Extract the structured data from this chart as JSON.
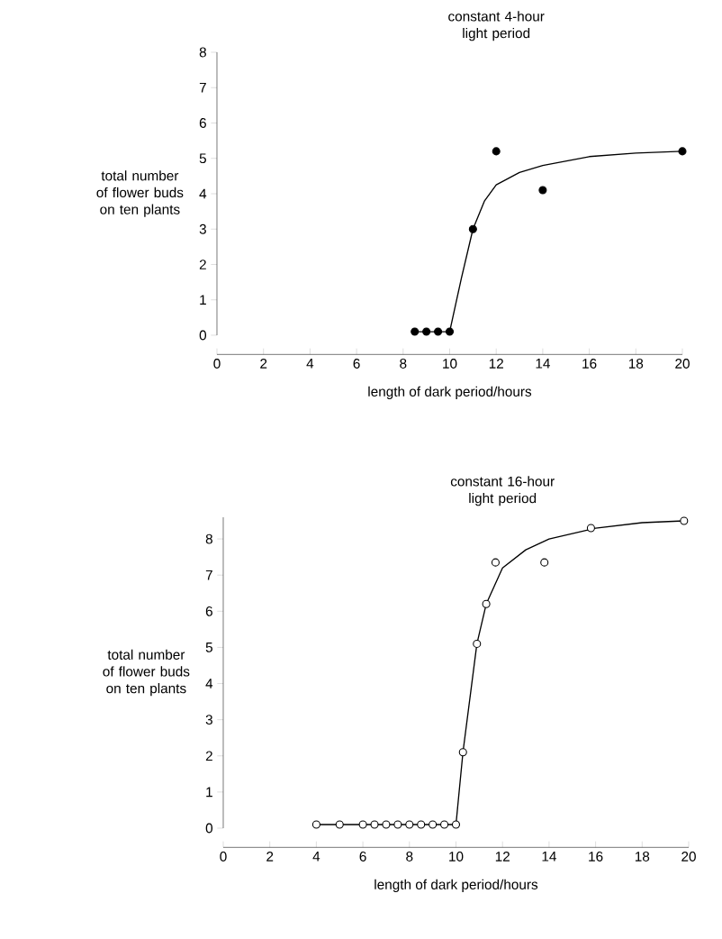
{
  "chart_data": [
    {
      "type": "scatter",
      "title": "constant 4-hour light period",
      "xlabel": "length of dark period/hours",
      "ylabel": "total number of flower buds on ten plants",
      "xlim": [
        0,
        20
      ],
      "ylim": [
        0,
        8
      ],
      "xticks": [
        0,
        2,
        4,
        6,
        8,
        10,
        12,
        14,
        16,
        18,
        20
      ],
      "yticks": [
        0,
        1,
        2,
        3,
        4,
        5,
        6,
        7,
        8
      ],
      "series": [
        {
          "marker": "circle",
          "color": "#000000",
          "x": [
            8.5,
            9,
            9.5,
            10,
            11,
            12,
            14,
            20
          ],
          "values": [
            0.1,
            0.1,
            0.1,
            0.1,
            3,
            5.2,
            4.1,
            5.2
          ]
        },
        {
          "type": "line",
          "color": "#000000",
          "line_style": "solid",
          "marker": "none",
          "x": [
            8.5,
            10,
            10.5,
            11,
            11.5,
            12,
            13,
            14,
            16,
            18,
            20
          ],
          "values": [
            0.1,
            0.1,
            1.6,
            3,
            3.8,
            4.25,
            4.6,
            4.8,
            5.05,
            5.15,
            5.2
          ]
        }
      ]
    },
    {
      "type": "scatter",
      "title": "constant 16-hour light period",
      "xlabel": "length of dark period/hours",
      "ylabel": "total number of flower buds on ten plants",
      "xlim": [
        0,
        20
      ],
      "ylim": [
        0,
        8.6
      ],
      "xticks": [
        0,
        2,
        4,
        6,
        8,
        10,
        12,
        14,
        16,
        18,
        20
      ],
      "yticks": [
        0,
        1,
        2,
        3,
        4,
        5,
        6,
        7,
        8
      ],
      "series": [
        {
          "marker": "circle",
          "color": "#ffffff",
          "x": [
            4,
            5,
            6,
            6.5,
            7,
            7.5,
            8,
            8.5,
            9,
            9.5,
            10,
            10.3,
            10.9,
            11.3,
            11.7,
            13.8,
            15.8,
            19.8
          ],
          "values": [
            0.1,
            0.1,
            0.1,
            0.1,
            0.1,
            0.1,
            0.1,
            0.1,
            0.1,
            0.1,
            0.1,
            2.1,
            5.1,
            6.2,
            7.35,
            7.35,
            8.3,
            8.5
          ]
        },
        {
          "type": "line",
          "color": "#000000",
          "line_style": "solid",
          "marker": "none",
          "x": [
            4,
            10,
            10.3,
            10.9,
            11.3,
            12,
            13,
            14,
            16,
            18,
            19.8
          ],
          "values": [
            0.1,
            0.1,
            2.1,
            5.1,
            6.2,
            7.2,
            7.7,
            8.0,
            8.3,
            8.45,
            8.5
          ]
        }
      ]
    }
  ]
}
